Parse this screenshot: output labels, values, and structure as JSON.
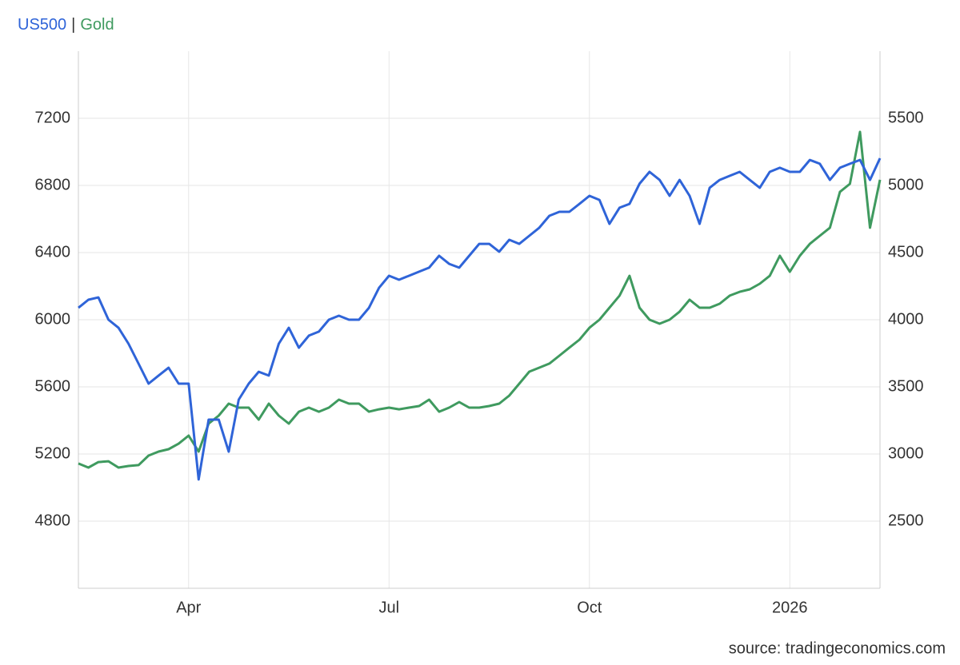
{
  "chart_data": {
    "type": "line",
    "legend_separator": "|",
    "source": "source: tradingeconomics.com",
    "categories": [
      null,
      null,
      null,
      null,
      null,
      null,
      null,
      null,
      null,
      null,
      null,
      "Apr",
      null,
      null,
      null,
      null,
      null,
      null,
      null,
      null,
      null,
      null,
      null,
      null,
      null,
      null,
      null,
      null,
      null,
      null,
      null,
      "Jul",
      null,
      null,
      null,
      null,
      null,
      null,
      null,
      null,
      null,
      null,
      null,
      null,
      null,
      null,
      null,
      null,
      null,
      null,
      null,
      "Oct",
      null,
      null,
      null,
      null,
      null,
      null,
      null,
      null,
      null,
      null,
      null,
      null,
      null,
      null,
      null,
      null,
      null,
      null,
      null,
      "2026",
      null,
      null,
      null,
      null,
      null,
      null,
      null,
      null,
      null
    ],
    "series": [
      {
        "name": "US500",
        "color": "#2f64d8",
        "values": [
          6071,
          6119,
          6133,
          6000,
          5952,
          5857,
          5738,
          5619,
          5667,
          5714,
          5619,
          5619,
          5048,
          5405,
          5405,
          5214,
          5524,
          5619,
          5690,
          5667,
          5857,
          5952,
          5833,
          5905,
          5929,
          6000,
          6024,
          6000,
          6000,
          6071,
          6190,
          6262,
          6238,
          6262,
          6286,
          6310,
          6381,
          6333,
          6310,
          6381,
          6452,
          6452,
          6405,
          6476,
          6452,
          6500,
          6548,
          6619,
          6643,
          6643,
          6690,
          6738,
          6714,
          6571,
          6667,
          6690,
          6810,
          6881,
          6833,
          6738,
          6833,
          6738,
          6571,
          6786,
          6833,
          6857,
          6881,
          6833,
          6786,
          6881,
          6905,
          6881,
          6881,
          6952,
          6929,
          6833,
          6905,
          6929,
          6952,
          6833,
          6962
        ]
      },
      {
        "name": "Gold",
        "color": "#3f9a5f",
        "axis": "y2",
        "values": [
          2929,
          2899,
          2940,
          2946,
          2899,
          2911,
          2917,
          2988,
          3018,
          3036,
          3077,
          3137,
          3018,
          3226,
          3286,
          3375,
          3345,
          3345,
          3256,
          3375,
          3286,
          3226,
          3315,
          3345,
          3315,
          3345,
          3405,
          3375,
          3375,
          3315,
          3333,
          3345,
          3333,
          3345,
          3357,
          3405,
          3315,
          3345,
          3387,
          3345,
          3345,
          3357,
          3375,
          3435,
          3524,
          3613,
          3643,
          3673,
          3732,
          3792,
          3851,
          3940,
          4000,
          4089,
          4179,
          4327,
          4089,
          4000,
          3970,
          4000,
          4060,
          4149,
          4089,
          4089,
          4119,
          4179,
          4208,
          4226,
          4268,
          4327,
          4476,
          4357,
          4476,
          4565,
          4625,
          4685,
          4952,
          5012,
          5399,
          4685,
          5042
        ]
      }
    ],
    "ylim": [
      4400,
      7600
    ],
    "yticks": [
      4800,
      5200,
      5600,
      6000,
      6400,
      6800,
      7200
    ],
    "y2lim": [
      2000,
      6000
    ],
    "y2ticks": [
      2500,
      3000,
      3500,
      4000,
      4500,
      5000,
      5500
    ],
    "grid": true
  }
}
